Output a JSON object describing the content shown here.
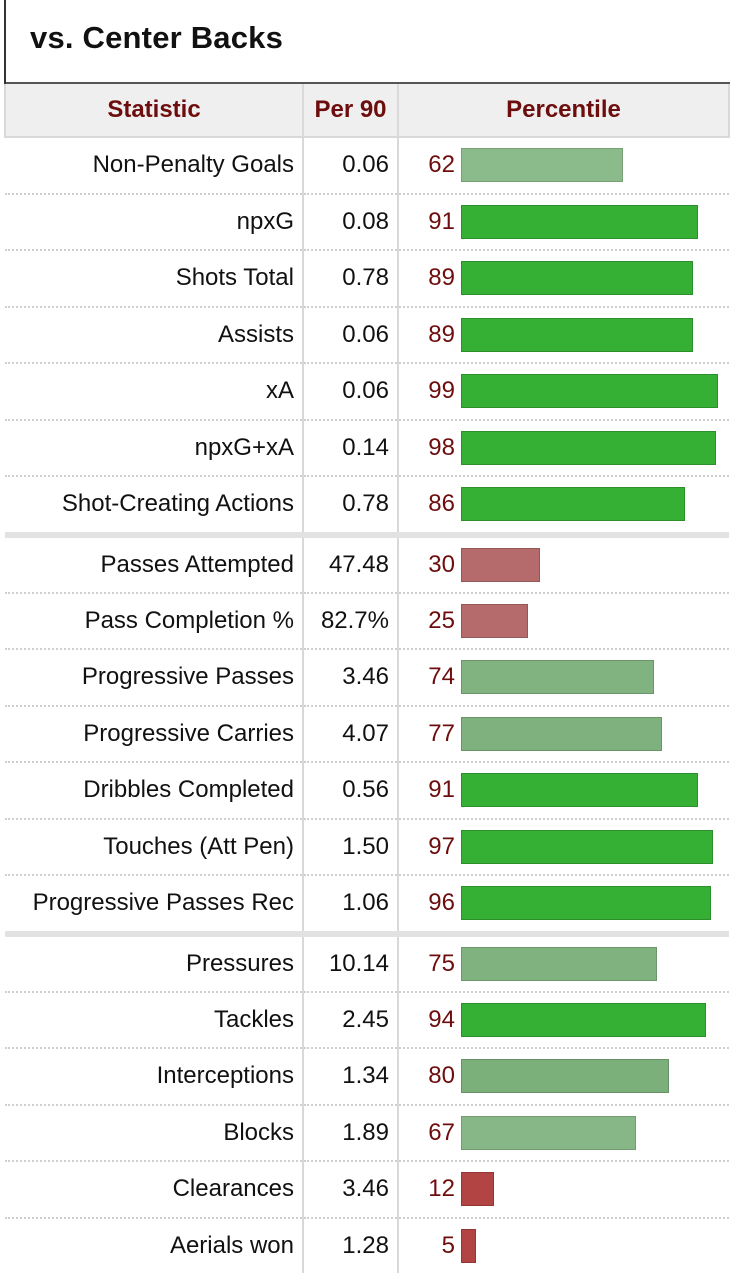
{
  "header": {
    "title": "vs. Center Backs"
  },
  "columns": {
    "statistic": "Statistic",
    "per90": "Per 90",
    "percentile": "Percentile"
  },
  "colors": {
    "high": "#35b035",
    "mid": "#76ad76",
    "low": "#b56b6b",
    "very_low": "#b34444",
    "header_text": "#6d0d0d"
  },
  "rows": [
    {
      "stat": "Non-Penalty Goals",
      "per90": "0.06",
      "pct": "62"
    },
    {
      "stat": "npxG",
      "per90": "0.08",
      "pct": "91"
    },
    {
      "stat": "Shots Total",
      "per90": "0.78",
      "pct": "89"
    },
    {
      "stat": "Assists",
      "per90": "0.06",
      "pct": "89"
    },
    {
      "stat": "xA",
      "per90": "0.06",
      "pct": "99"
    },
    {
      "stat": "npxG+xA",
      "per90": "0.14",
      "pct": "98"
    },
    {
      "stat": "Shot-Creating Actions",
      "per90": "0.78",
      "pct": "86"
    },
    {
      "stat": "Passes Attempted",
      "per90": "47.48",
      "pct": "30"
    },
    {
      "stat": "Pass Completion %",
      "per90": "82.7%",
      "pct": "25"
    },
    {
      "stat": "Progressive Passes",
      "per90": "3.46",
      "pct": "74"
    },
    {
      "stat": "Progressive Carries",
      "per90": "4.07",
      "pct": "77"
    },
    {
      "stat": "Dribbles Completed",
      "per90": "0.56",
      "pct": "91"
    },
    {
      "stat": "Touches (Att Pen)",
      "per90": "1.50",
      "pct": "97"
    },
    {
      "stat": "Progressive Passes Rec",
      "per90": "1.06",
      "pct": "96"
    },
    {
      "stat": "Pressures",
      "per90": "10.14",
      "pct": "75"
    },
    {
      "stat": "Tackles",
      "per90": "2.45",
      "pct": "94"
    },
    {
      "stat": "Interceptions",
      "per90": "1.34",
      "pct": "80"
    },
    {
      "stat": "Blocks",
      "per90": "1.89",
      "pct": "67"
    },
    {
      "stat": "Clearances",
      "per90": "3.46",
      "pct": "12"
    },
    {
      "stat": "Aerials won",
      "per90": "1.28",
      "pct": "5"
    }
  ]
}
